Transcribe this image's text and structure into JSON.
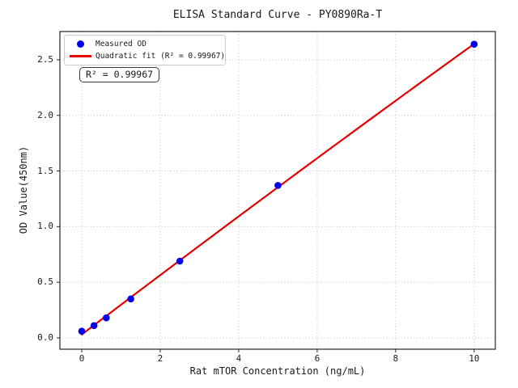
{
  "figure": {
    "title": "ELISA Standard Curve - PY0890Ra-T",
    "xlabel": "Rat mTOR Concentration (ng/mL)",
    "ylabel": "OD Value(450nm)",
    "annotation": "R² = 0.99967",
    "background": "#ffffff"
  },
  "legend": {
    "position": "upper left",
    "items": [
      {
        "label": "Measured OD",
        "marker": "dot",
        "color": "#0000ee"
      },
      {
        "label": "Quadratic fit (R² = 0.99967)",
        "marker": "line",
        "color": "#e60000"
      }
    ]
  },
  "chart_data": {
    "type": "scatter",
    "title": "ELISA Standard Curve - PY0890Ra-T",
    "xlabel": "Rat mTOR Concentration (ng/mL)",
    "ylabel": "OD Value(450nm)",
    "xlim": [
      -0.557,
      10.54
    ],
    "ylim": [
      -0.102,
      2.754
    ],
    "xticks": {
      "values": [
        0,
        2,
        4,
        6,
        8,
        10
      ],
      "labels": [
        "0",
        "2",
        "4",
        "6",
        "8",
        "10"
      ]
    },
    "yticks": {
      "values": [
        0,
        0.5,
        1.0,
        1.5,
        2.0,
        2.5
      ],
      "labels": [
        "0.0",
        "0.5",
        "1.0",
        "1.5",
        "2.0",
        "2.5"
      ]
    },
    "grid": true,
    "grid_style": "dotted",
    "legend_position": "upper left",
    "series": [
      {
        "name": "Measured OD",
        "type": "scatter",
        "color": "#0000ee",
        "x": [
          0,
          0.3125,
          0.625,
          1.25,
          2.5,
          5,
          10
        ],
        "y": [
          0.06,
          0.11,
          0.18,
          0.35,
          0.69,
          1.37,
          2.64
        ]
      },
      {
        "name": "Quadratic fit (R² = 0.99967)",
        "type": "line",
        "color": "#e60000",
        "fit": {
          "kind": "quadratic",
          "a": -0.000715,
          "b": 0.26846,
          "c": 0.03,
          "r2": 0.99967
        },
        "x_range": [
          0,
          10
        ]
      }
    ],
    "colors": {
      "grid": "#c9c9c9",
      "axis": "#262626",
      "point": "#0000ee",
      "line": "#e60000"
    }
  }
}
